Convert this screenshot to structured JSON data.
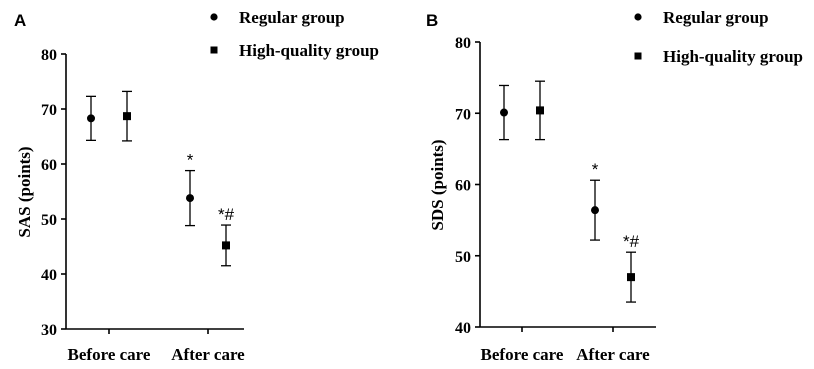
{
  "chart_data": [
    {
      "panel_label": "A",
      "type": "scatter",
      "ylabel": "SAS (points)",
      "ylim": [
        30,
        80
      ],
      "yticks": [
        "30",
        "40",
        "50",
        "60",
        "70",
        "80"
      ],
      "categories": [
        "Before care",
        "After care"
      ],
      "legend_placement": "top-right",
      "series": [
        {
          "name": "Regular group",
          "marker": "circle",
          "values": [
            68.3,
            53.8
          ],
          "error": [
            4.0,
            5.0
          ],
          "annotations": [
            "",
            "*"
          ]
        },
        {
          "name": "High-quality group",
          "marker": "square",
          "values": [
            68.7,
            45.2
          ],
          "error": [
            4.5,
            3.7
          ],
          "annotations": [
            "",
            "*#"
          ]
        }
      ]
    },
    {
      "panel_label": "B",
      "type": "scatter",
      "ylabel": "SDS (points)",
      "ylim": [
        40,
        80
      ],
      "yticks": [
        "40",
        "50",
        "60",
        "70",
        "80"
      ],
      "categories": [
        "Before care",
        "After care"
      ],
      "legend_placement": "top-right",
      "series": [
        {
          "name": "Regular group",
          "marker": "circle",
          "values": [
            70.1,
            56.4
          ],
          "error": [
            3.8,
            4.2
          ],
          "annotations": [
            "",
            "*"
          ]
        },
        {
          "name": "High-quality group",
          "marker": "square",
          "values": [
            70.4,
            47.0
          ],
          "error": [
            4.1,
            3.5
          ],
          "annotations": [
            "",
            "*#"
          ]
        }
      ]
    }
  ]
}
